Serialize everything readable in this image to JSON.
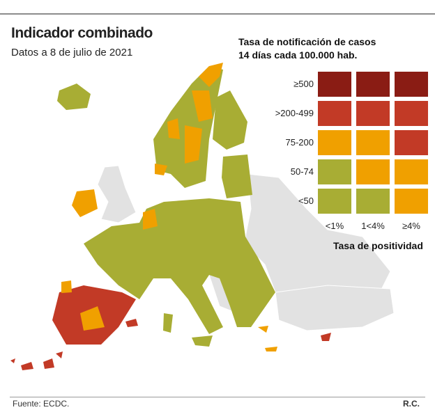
{
  "title": "Indicador combinado",
  "subtitle": "Datos a 8 de julio de 2021",
  "legend": {
    "title_line1": "Tasa de notificación de casos",
    "title_line2": "14 días cada 100.000 hab.",
    "rows": [
      "≥500",
      ">200-499",
      "75-200",
      "50-74",
      "<50"
    ],
    "columns": [
      "<1%",
      "1<4%",
      "≥4%"
    ],
    "column_title": "Tasa de positividad",
    "matrix": [
      [
        "darkred",
        "darkred",
        "darkred"
      ],
      [
        "red",
        "red",
        "red"
      ],
      [
        "orange",
        "orange",
        "red"
      ],
      [
        "green",
        "orange",
        "orange"
      ],
      [
        "green",
        "green",
        "orange"
      ]
    ]
  },
  "colors": {
    "green": "#a8ad34",
    "orange": "#f0a000",
    "red": "#c23a26",
    "darkred": "#8a1c14",
    "nodata": "#e2e2e2"
  },
  "footer": {
    "source": "Fuente: ECDC.",
    "credit": "R.C."
  }
}
